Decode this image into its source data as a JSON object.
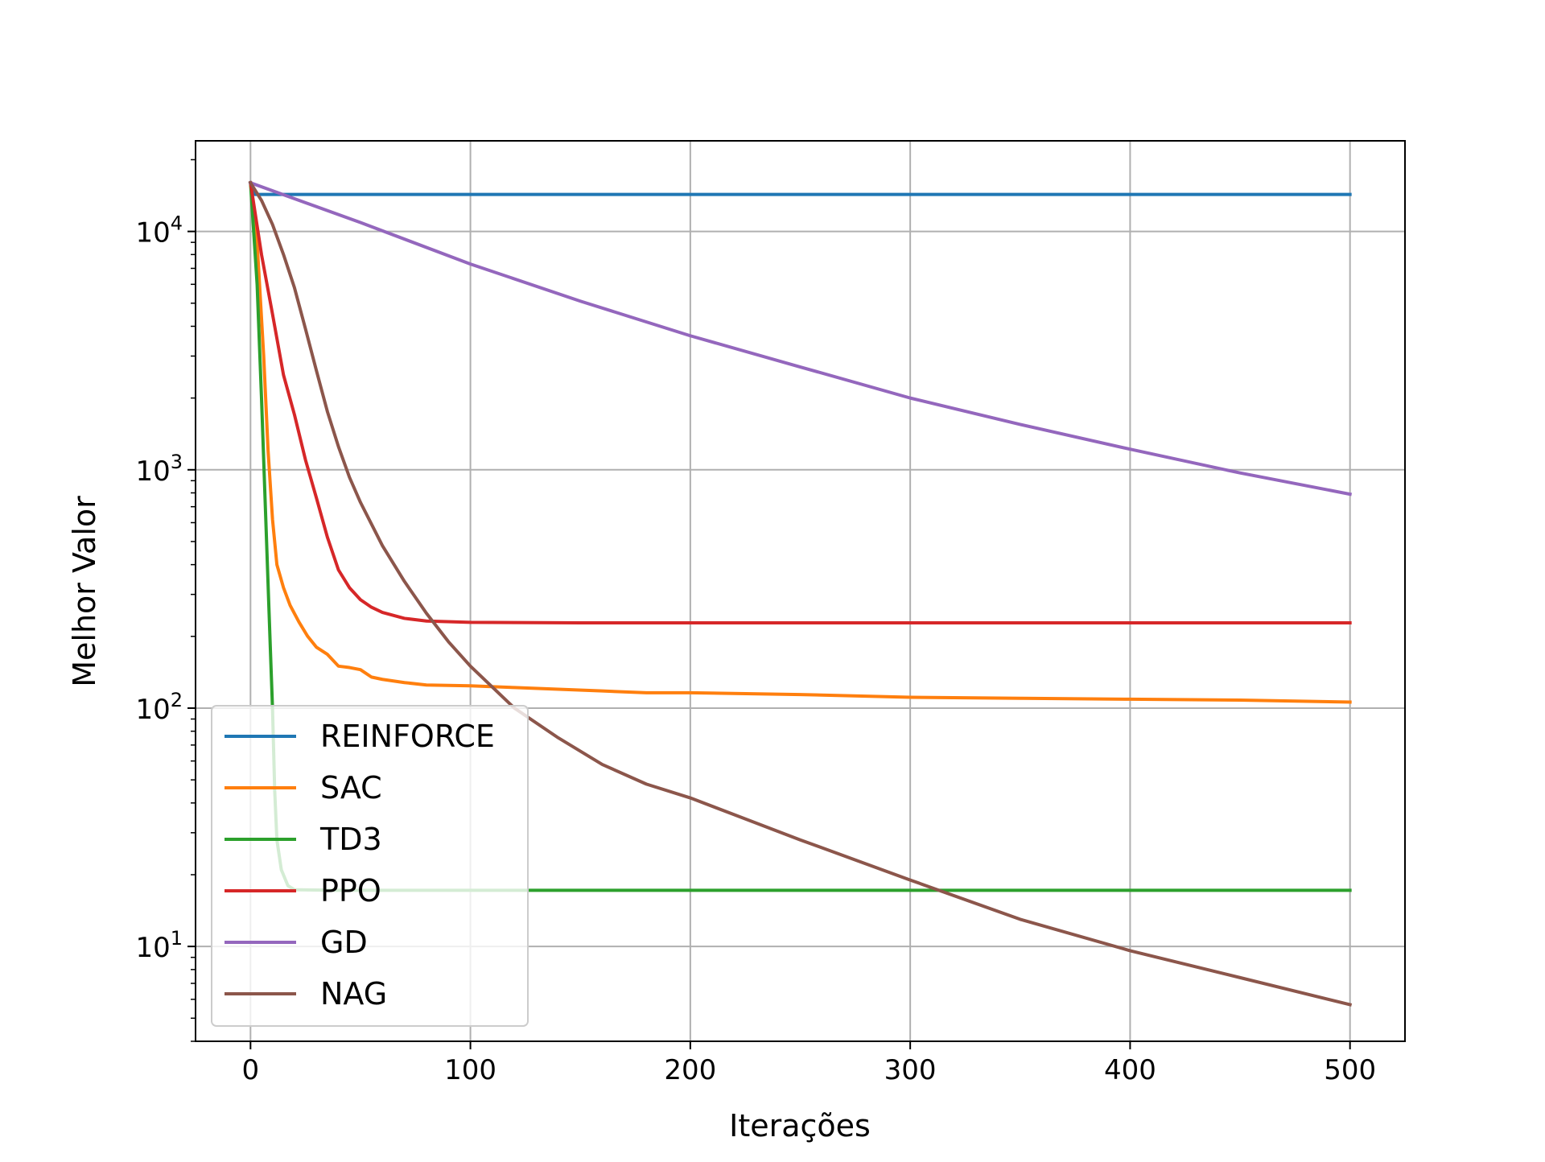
{
  "chart_data": {
    "type": "line",
    "title": "",
    "xlabel": "Iterações",
    "ylabel": "Melhor Valor",
    "xlim": [
      -25,
      525
    ],
    "ylim": [
      4,
      24000
    ],
    "yscale": "log",
    "grid": true,
    "legend_position": "lower left",
    "x_ticks": [
      {
        "value": 0,
        "label": "0"
      },
      {
        "value": 100,
        "label": "100"
      },
      {
        "value": 200,
        "label": "200"
      },
      {
        "value": 300,
        "label": "300"
      },
      {
        "value": 400,
        "label": "400"
      },
      {
        "value": 500,
        "label": "500"
      }
    ],
    "y_ticks": [
      {
        "value": 10,
        "base": "10",
        "exp": "1"
      },
      {
        "value": 100,
        "base": "10",
        "exp": "2"
      },
      {
        "value": 1000,
        "base": "10",
        "exp": "3"
      },
      {
        "value": 10000,
        "base": "10",
        "exp": "4"
      }
    ],
    "series": [
      {
        "name": "REINFORCE",
        "color": "#1f77b4",
        "points": [
          [
            0,
            16000
          ],
          [
            2,
            14300
          ],
          [
            500,
            14300
          ]
        ]
      },
      {
        "name": "SAC",
        "color": "#ff7f0e",
        "points": [
          [
            0,
            16000
          ],
          [
            3,
            9000
          ],
          [
            6,
            3000
          ],
          [
            8,
            1200
          ],
          [
            10,
            620
          ],
          [
            12,
            400
          ],
          [
            15,
            320
          ],
          [
            18,
            270
          ],
          [
            22,
            230
          ],
          [
            26,
            200
          ],
          [
            30,
            180
          ],
          [
            35,
            168
          ],
          [
            40,
            150
          ],
          [
            45,
            148
          ],
          [
            50,
            145
          ],
          [
            55,
            135
          ],
          [
            60,
            132
          ],
          [
            70,
            128
          ],
          [
            80,
            125
          ],
          [
            100,
            124
          ],
          [
            120,
            122
          ],
          [
            140,
            120
          ],
          [
            160,
            118
          ],
          [
            180,
            116
          ],
          [
            200,
            116
          ],
          [
            250,
            114
          ],
          [
            300,
            111
          ],
          [
            350,
            110
          ],
          [
            400,
            109
          ],
          [
            450,
            108
          ],
          [
            500,
            106
          ]
        ]
      },
      {
        "name": "TD3",
        "color": "#2ca02c",
        "points": [
          [
            0,
            16000
          ],
          [
            3,
            6000
          ],
          [
            5,
            2000
          ],
          [
            7,
            600
          ],
          [
            9,
            180
          ],
          [
            10,
            100
          ],
          [
            11,
            45
          ],
          [
            12,
            28
          ],
          [
            14,
            21
          ],
          [
            17,
            18
          ],
          [
            20,
            17.3
          ],
          [
            40,
            17.2
          ],
          [
            100,
            17.2
          ],
          [
            500,
            17.2
          ]
        ]
      },
      {
        "name": "PPO",
        "color": "#d62728",
        "points": [
          [
            0,
            16000
          ],
          [
            5,
            8000
          ],
          [
            10,
            4500
          ],
          [
            15,
            2500
          ],
          [
            20,
            1700
          ],
          [
            25,
            1100
          ],
          [
            30,
            760
          ],
          [
            35,
            520
          ],
          [
            40,
            380
          ],
          [
            45,
            320
          ],
          [
            50,
            285
          ],
          [
            55,
            265
          ],
          [
            60,
            252
          ],
          [
            70,
            238
          ],
          [
            80,
            232
          ],
          [
            100,
            229
          ],
          [
            150,
            228
          ],
          [
            200,
            228
          ],
          [
            300,
            228
          ],
          [
            400,
            228
          ],
          [
            500,
            228
          ]
        ]
      },
      {
        "name": "GD",
        "color": "#9467bd",
        "points": [
          [
            0,
            16000
          ],
          [
            50,
            10900
          ],
          [
            100,
            7300
          ],
          [
            150,
            5100
          ],
          [
            200,
            3650
          ],
          [
            250,
            2700
          ],
          [
            300,
            2000
          ],
          [
            350,
            1550
          ],
          [
            400,
            1220
          ],
          [
            450,
            970
          ],
          [
            500,
            790
          ]
        ]
      },
      {
        "name": "NAG",
        "color": "#8c564b",
        "points": [
          [
            0,
            16000
          ],
          [
            5,
            13500
          ],
          [
            10,
            10700
          ],
          [
            15,
            8000
          ],
          [
            20,
            5800
          ],
          [
            25,
            3900
          ],
          [
            30,
            2600
          ],
          [
            35,
            1750
          ],
          [
            40,
            1250
          ],
          [
            45,
            930
          ],
          [
            50,
            730
          ],
          [
            60,
            480
          ],
          [
            70,
            340
          ],
          [
            80,
            250
          ],
          [
            90,
            190
          ],
          [
            100,
            150
          ],
          [
            120,
            100
          ],
          [
            140,
            75
          ],
          [
            160,
            58
          ],
          [
            180,
            48
          ],
          [
            200,
            42
          ],
          [
            250,
            28
          ],
          [
            300,
            19
          ],
          [
            350,
            13
          ],
          [
            400,
            9.6
          ],
          [
            450,
            7.4
          ],
          [
            500,
            5.7
          ]
        ]
      }
    ]
  }
}
